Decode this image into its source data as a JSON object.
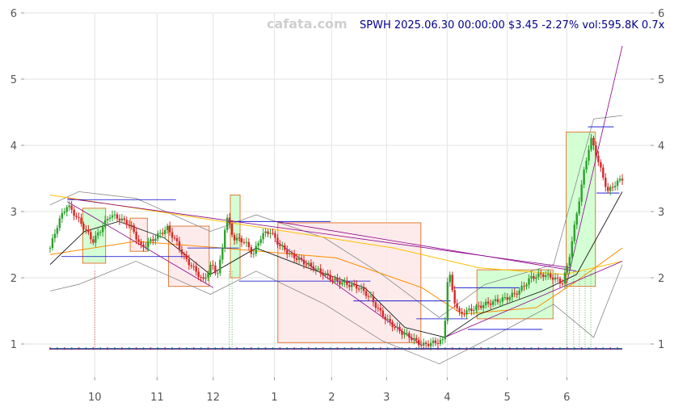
{
  "header": {
    "watermark": "cafata.com",
    "title": "SPWH 2025.06.30 00:00:00 $3.45 -2.27% vol:595.8K 0.7x"
  },
  "colors": {
    "up": "#2ca02c",
    "down": "#d62728",
    "zone_green": "#ccffcc",
    "zone_red": "#fde7e7",
    "zone_border": "#e07b39",
    "trend": "#8b008b",
    "sup_line": "#0000cc",
    "ma_slow": "#ffc000",
    "ma_mid": "#ff8c00",
    "ma_fast": "#000000",
    "band": "#888888"
  },
  "chart_data": {
    "type": "candlestick",
    "ticker": "SPWH",
    "ylim": [
      0.5,
      6.0
    ],
    "y_ticks": [
      1,
      2,
      3,
      4,
      5,
      6
    ],
    "x_ticks": [
      {
        "label": "10",
        "t": 0.078
      },
      {
        "label": "11",
        "t": 0.187
      },
      {
        "label": "12",
        "t": 0.285
      },
      {
        "label": "1",
        "t": 0.392
      },
      {
        "label": "2",
        "t": 0.492
      },
      {
        "label": "3",
        "t": 0.588
      },
      {
        "label": "4",
        "t": 0.694
      },
      {
        "label": "5",
        "t": 0.799
      },
      {
        "label": "6",
        "t": 0.903
      }
    ],
    "close_path": [
      [
        0.0,
        2.45
      ],
      [
        0.015,
        2.85
      ],
      [
        0.03,
        3.1
      ],
      [
        0.048,
        2.9
      ],
      [
        0.06,
        2.75
      ],
      [
        0.075,
        2.55
      ],
      [
        0.09,
        2.75
      ],
      [
        0.105,
        2.95
      ],
      [
        0.12,
        2.9
      ],
      [
        0.14,
        2.8
      ],
      [
        0.16,
        2.45
      ],
      [
        0.175,
        2.55
      ],
      [
        0.19,
        2.65
      ],
      [
        0.205,
        2.75
      ],
      [
        0.22,
        2.55
      ],
      [
        0.235,
        2.3
      ],
      [
        0.25,
        2.15
      ],
      [
        0.268,
        1.95
      ],
      [
        0.282,
        2.2
      ],
      [
        0.292,
        2.05
      ],
      [
        0.3,
        2.35
      ],
      [
        0.308,
        2.95
      ],
      [
        0.32,
        2.6
      ],
      [
        0.34,
        2.55
      ],
      [
        0.355,
        2.35
      ],
      [
        0.37,
        2.65
      ],
      [
        0.385,
        2.7
      ],
      [
        0.4,
        2.5
      ],
      [
        0.42,
        2.35
      ],
      [
        0.44,
        2.25
      ],
      [
        0.46,
        2.15
      ],
      [
        0.48,
        2.05
      ],
      [
        0.5,
        1.95
      ],
      [
        0.52,
        1.9
      ],
      [
        0.54,
        1.85
      ],
      [
        0.56,
        1.7
      ],
      [
        0.575,
        1.5
      ],
      [
        0.59,
        1.35
      ],
      [
        0.61,
        1.2
      ],
      [
        0.63,
        1.1
      ],
      [
        0.65,
        0.98
      ],
      [
        0.67,
        1.02
      ],
      [
        0.688,
        1.05
      ],
      [
        0.696,
        2.15
      ],
      [
        0.705,
        1.7
      ],
      [
        0.715,
        1.45
      ],
      [
        0.73,
        1.5
      ],
      [
        0.745,
        1.55
      ],
      [
        0.76,
        1.6
      ],
      [
        0.78,
        1.65
      ],
      [
        0.8,
        1.7
      ],
      [
        0.82,
        1.8
      ],
      [
        0.84,
        2.0
      ],
      [
        0.86,
        2.05
      ],
      [
        0.88,
        2.0
      ],
      [
        0.895,
        1.92
      ],
      [
        0.905,
        2.2
      ],
      [
        0.915,
        2.7
      ],
      [
        0.925,
        3.2
      ],
      [
        0.935,
        3.7
      ],
      [
        0.945,
        4.1
      ],
      [
        0.955,
        3.85
      ],
      [
        0.965,
        3.55
      ],
      [
        0.975,
        3.3
      ],
      [
        0.985,
        3.4
      ],
      [
        1.0,
        3.5
      ]
    ],
    "ma_slow": [
      [
        0.0,
        3.25
      ],
      [
        0.3,
        2.85
      ],
      [
        0.6,
        2.45
      ],
      [
        0.75,
        2.15
      ],
      [
        0.9,
        2.05
      ],
      [
        1.0,
        2.25
      ]
    ],
    "ma_mid": [
      [
        0.0,
        2.35
      ],
      [
        0.15,
        2.55
      ],
      [
        0.3,
        2.45
      ],
      [
        0.5,
        2.3
      ],
      [
        0.65,
        1.85
      ],
      [
        0.72,
        1.45
      ],
      [
        0.85,
        1.55
      ],
      [
        0.92,
        1.95
      ],
      [
        1.0,
        2.45
      ]
    ],
    "ma_fast": [
      [
        0.0,
        2.2
      ],
      [
        0.06,
        2.7
      ],
      [
        0.12,
        2.85
      ],
      [
        0.2,
        2.6
      ],
      [
        0.28,
        2.05
      ],
      [
        0.36,
        2.45
      ],
      [
        0.45,
        2.15
      ],
      [
        0.55,
        1.85
      ],
      [
        0.62,
        1.25
      ],
      [
        0.69,
        1.1
      ],
      [
        0.75,
        1.45
      ],
      [
        0.86,
        1.8
      ],
      [
        0.92,
        2.05
      ],
      [
        1.0,
        3.3
      ]
    ],
    "band_upper": [
      [
        0.0,
        3.1
      ],
      [
        0.05,
        3.3
      ],
      [
        0.15,
        3.2
      ],
      [
        0.28,
        2.7
      ],
      [
        0.36,
        2.95
      ],
      [
        0.48,
        2.6
      ],
      [
        0.58,
        2.05
      ],
      [
        0.68,
        1.4
      ],
      [
        0.76,
        1.9
      ],
      [
        0.88,
        2.2
      ],
      [
        0.95,
        4.4
      ],
      [
        1.0,
        4.45
      ]
    ],
    "band_lower": [
      [
        0.0,
        1.8
      ],
      [
        0.05,
        1.9
      ],
      [
        0.15,
        2.25
      ],
      [
        0.28,
        1.75
      ],
      [
        0.36,
        2.1
      ],
      [
        0.48,
        1.6
      ],
      [
        0.58,
        1.05
      ],
      [
        0.68,
        0.7
      ],
      [
        0.76,
        1.05
      ],
      [
        0.88,
        1.6
      ],
      [
        0.95,
        1.1
      ],
      [
        1.0,
        2.2
      ]
    ],
    "trend_lines": [
      [
        [
          0.03,
          3.2
        ],
        [
          0.91,
          2.15
        ]
      ],
      [
        [
          0.03,
          3.15
        ],
        [
          0.285,
          1.85
        ]
      ],
      [
        [
          0.395,
          2.55
        ],
        [
          0.65,
          0.98
        ]
      ],
      [
        [
          0.395,
          2.85
        ],
        [
          0.92,
          2.1
        ]
      ],
      [
        [
          0.69,
          1.1
        ],
        [
          1.0,
          2.25
        ]
      ],
      [
        [
          0.903,
          1.92
        ],
        [
          1.0,
          5.5
        ]
      ]
    ],
    "level_lines": [
      {
        "x0": 0.03,
        "x1": 0.22,
        "y": 3.18
      },
      {
        "x0": 0.02,
        "x1": 0.24,
        "y": 2.32
      },
      {
        "x0": 0.24,
        "x1": 0.33,
        "y": 2.45
      },
      {
        "x0": 0.31,
        "x1": 0.49,
        "y": 2.85
      },
      {
        "x0": 0.33,
        "x1": 0.56,
        "y": 1.95
      },
      {
        "x0": 0.53,
        "x1": 0.7,
        "y": 1.65
      },
      {
        "x0": 0.64,
        "x1": 0.73,
        "y": 1.38
      },
      {
        "x0": 0.705,
        "x1": 0.82,
        "y": 1.85
      },
      {
        "x0": 0.73,
        "x1": 0.86,
        "y": 1.22
      },
      {
        "x0": 0.94,
        "x1": 0.985,
        "y": 4.28
      },
      {
        "x0": 0.955,
        "x1": 0.995,
        "y": 3.28
      }
    ],
    "zones": [
      {
        "x0": 0.057,
        "x1": 0.097,
        "y0": 2.22,
        "y1": 3.05,
        "kind": "green"
      },
      {
        "x0": 0.14,
        "x1": 0.17,
        "y0": 2.4,
        "y1": 2.9,
        "kind": "red"
      },
      {
        "x0": 0.207,
        "x1": 0.278,
        "y0": 1.87,
        "y1": 2.78,
        "kind": "red"
      },
      {
        "x0": 0.315,
        "x1": 0.332,
        "y0": 2.0,
        "y1": 3.25,
        "kind": "green"
      },
      {
        "x0": 0.398,
        "x1": 0.648,
        "y0": 1.02,
        "y1": 2.83,
        "kind": "red"
      },
      {
        "x0": 0.746,
        "x1": 0.879,
        "y0": 1.38,
        "y1": 2.12,
        "kind": "green"
      },
      {
        "x0": 0.902,
        "x1": 0.953,
        "y0": 1.87,
        "y1": 4.2,
        "kind": "green"
      }
    ]
  }
}
